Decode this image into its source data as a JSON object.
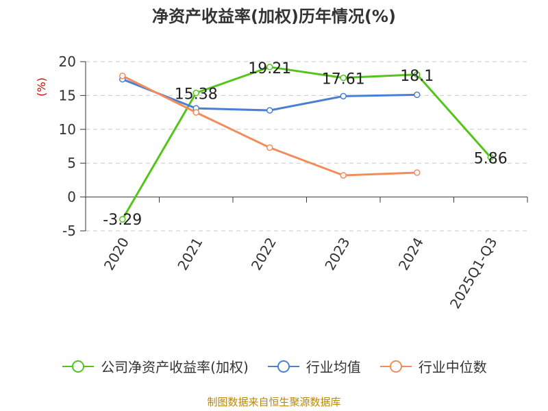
{
  "title": "净资产收益率(加权)历年情况(%)",
  "footer": "制图数据来自恒生聚源数据库",
  "chart_data": {
    "type": "line",
    "title": "净资产收益率(加权)历年情况(%)",
    "ylabel": "(%)",
    "ylim": [
      -5,
      20
    ],
    "yticks": [
      20,
      15,
      10,
      5,
      0,
      -5
    ],
    "ytick_labels": [
      "20",
      "15",
      "10",
      "5",
      "0",
      "-5"
    ],
    "categories": [
      "2020",
      "2021",
      "2022",
      "2023",
      "2024",
      "2025Q1-Q3"
    ],
    "grid": true,
    "legend_position": "bottom",
    "series": [
      {
        "name": "公司净资产收益率(加权)",
        "color": "#52c41a",
        "values": [
          -3.29,
          15.38,
          19.21,
          17.61,
          18.1,
          5.86
        ],
        "labels": [
          "-3.29",
          "15.38",
          "19.21",
          "17.61",
          "18.1",
          "5.86"
        ]
      },
      {
        "name": "行业均值",
        "color": "#4a7fd6",
        "values": [
          17.4,
          13.1,
          12.8,
          14.9,
          15.1,
          null
        ],
        "labels": []
      },
      {
        "name": "行业中位数",
        "color": "#f28c5a",
        "values": [
          17.9,
          12.5,
          7.3,
          3.2,
          3.6,
          null
        ],
        "labels": []
      }
    ]
  }
}
